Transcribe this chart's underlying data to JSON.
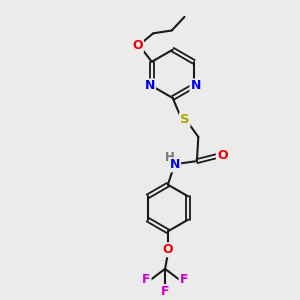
{
  "bg_color": "#ebebeb",
  "bond_color": "#1a1a1a",
  "atom_colors": {
    "N": "#0000ee",
    "O": "#ee0000",
    "S": "#aaaa00",
    "F": "#cc00cc",
    "H": "#777777",
    "C": "#1a1a1a"
  },
  "figsize": [
    3.0,
    3.0
  ],
  "dpi": 100
}
